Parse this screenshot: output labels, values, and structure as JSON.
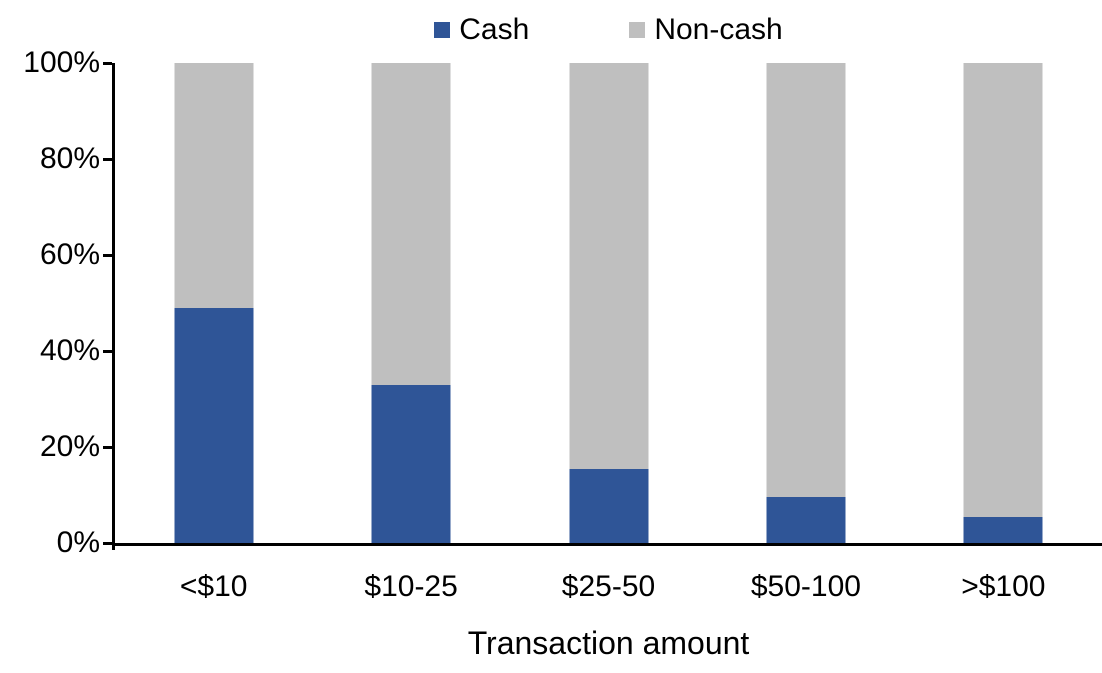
{
  "chart_data": {
    "type": "bar",
    "stacked": true,
    "percent_stacked": true,
    "title": "",
    "categories": [
      "<$10",
      "$10-25",
      "$25-50",
      "$50-100",
      ">$100"
    ],
    "series": [
      {
        "name": "Cash",
        "color": "#2F5597",
        "values": [
          49,
          33,
          15.5,
          9.5,
          5.5
        ]
      },
      {
        "name": "Non-cash",
        "color": "#BFBFBF",
        "values": [
          51,
          67,
          84.5,
          90.5,
          94.5
        ]
      }
    ],
    "xlabel": "Transaction amount",
    "ylabel": "",
    "ylim": [
      0,
      100
    ],
    "y_tick_labels": [
      "0%",
      "20%",
      "40%",
      "60%",
      "80%",
      "100%"
    ],
    "y_tick_values": [
      0,
      20,
      40,
      60,
      80,
      100
    ],
    "grid": false,
    "legend_position": "top-center",
    "axis_color": "#000000",
    "background_color": "#FFFFFF"
  }
}
